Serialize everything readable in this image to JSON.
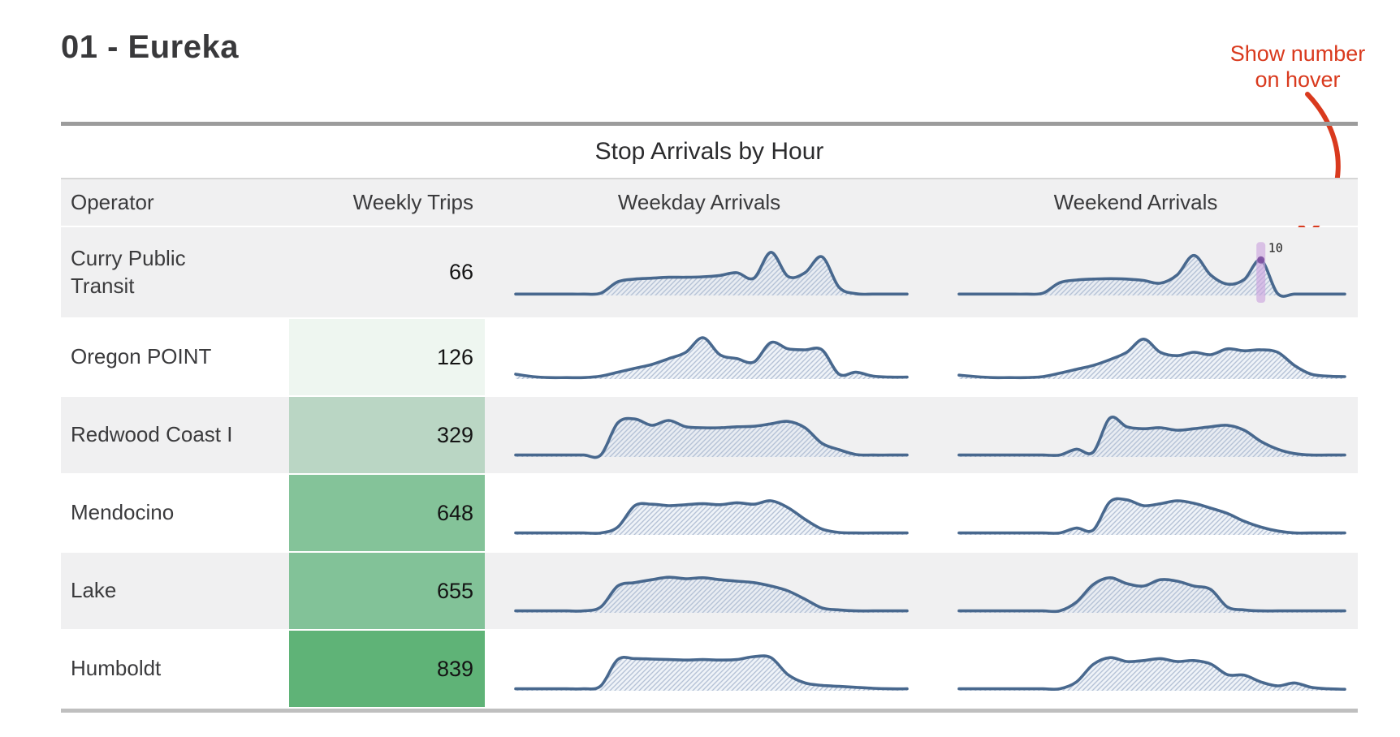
{
  "page_title": "01 - Eureka",
  "annotation": {
    "line1": "Show number",
    "line2": "on hover",
    "color": "#d93a1e"
  },
  "hover_tooltip": {
    "value": "10",
    "row": "Curry Public Transit",
    "column": "Weekend Arrivals",
    "hour_index": 18,
    "bar_color": "#c9a0dd",
    "dot_color": "#7a4f9e"
  },
  "colors": {
    "line": "#48688e",
    "hatch": "#b5c2d6",
    "row_stripe": "#f0f0f1"
  },
  "chart_data": {
    "type": "table",
    "title": "Stop Arrivals by Hour",
    "columns": [
      "Operator",
      "Weekly Trips",
      "Weekday Arrivals",
      "Weekend Arrivals"
    ],
    "sparkline_type": "area",
    "x_unit": "hour of day (0-23)",
    "y_unit": "relative arrivals (0-1, no axis shown)",
    "rows": [
      {
        "operator": "Curry Public Transit",
        "weekly_trips": 66,
        "trips_color": "#f0f0f1",
        "weekday_arrivals": [
          0.03,
          0.03,
          0.03,
          0.03,
          0.03,
          0.05,
          0.3,
          0.36,
          0.38,
          0.4,
          0.4,
          0.41,
          0.44,
          0.5,
          0.38,
          0.95,
          0.42,
          0.5,
          0.85,
          0.18,
          0.04,
          0.03,
          0.03,
          0.03
        ],
        "weekend_arrivals": [
          0.03,
          0.03,
          0.03,
          0.03,
          0.03,
          0.05,
          0.28,
          0.34,
          0.36,
          0.37,
          0.36,
          0.33,
          0.27,
          0.45,
          0.88,
          0.45,
          0.25,
          0.35,
          0.78,
          0.04,
          0.03,
          0.03,
          0.03,
          0.03
        ]
      },
      {
        "operator": "Oregon POINT",
        "weekly_trips": 126,
        "trips_color": "#eef6f0",
        "weekday_arrivals": [
          0.1,
          0.05,
          0.03,
          0.03,
          0.03,
          0.06,
          0.14,
          0.22,
          0.3,
          0.42,
          0.55,
          0.85,
          0.5,
          0.42,
          0.35,
          0.75,
          0.62,
          0.6,
          0.6,
          0.1,
          0.14,
          0.06,
          0.04,
          0.04
        ],
        "weekend_arrivals": [
          0.08,
          0.05,
          0.03,
          0.03,
          0.03,
          0.05,
          0.12,
          0.2,
          0.28,
          0.4,
          0.55,
          0.82,
          0.55,
          0.48,
          0.55,
          0.5,
          0.62,
          0.58,
          0.6,
          0.55,
          0.28,
          0.1,
          0.06,
          0.05
        ]
      },
      {
        "operator": "Redwood Coast I",
        "weekly_trips": 329,
        "trips_color": "#bad6c4",
        "weekday_arrivals": [
          0.04,
          0.04,
          0.04,
          0.04,
          0.04,
          0.04,
          0.7,
          0.78,
          0.65,
          0.75,
          0.62,
          0.6,
          0.6,
          0.62,
          0.63,
          0.68,
          0.73,
          0.6,
          0.28,
          0.15,
          0.05,
          0.04,
          0.04,
          0.04
        ],
        "weekend_arrivals": [
          0.04,
          0.04,
          0.04,
          0.04,
          0.04,
          0.04,
          0.04,
          0.16,
          0.1,
          0.8,
          0.62,
          0.58,
          0.6,
          0.55,
          0.58,
          0.62,
          0.65,
          0.55,
          0.32,
          0.16,
          0.07,
          0.04,
          0.04,
          0.04
        ]
      },
      {
        "operator": "Mendocino",
        "weekly_trips": 648,
        "trips_color": "#84c399",
        "weekday_arrivals": [
          0.04,
          0.04,
          0.04,
          0.04,
          0.04,
          0.04,
          0.16,
          0.6,
          0.63,
          0.6,
          0.62,
          0.64,
          0.62,
          0.66,
          0.63,
          0.7,
          0.56,
          0.32,
          0.12,
          0.05,
          0.04,
          0.04,
          0.04,
          0.04
        ],
        "weekend_arrivals": [
          0.04,
          0.04,
          0.04,
          0.04,
          0.04,
          0.04,
          0.04,
          0.14,
          0.1,
          0.68,
          0.72,
          0.6,
          0.64,
          0.7,
          0.65,
          0.55,
          0.44,
          0.28,
          0.16,
          0.08,
          0.04,
          0.04,
          0.04,
          0.04
        ]
      },
      {
        "operator": "Lake",
        "weekly_trips": 655,
        "trips_color": "#82c298",
        "weekday_arrivals": [
          0.04,
          0.04,
          0.04,
          0.04,
          0.04,
          0.12,
          0.55,
          0.62,
          0.68,
          0.73,
          0.7,
          0.72,
          0.68,
          0.65,
          0.62,
          0.55,
          0.45,
          0.28,
          0.1,
          0.06,
          0.04,
          0.04,
          0.04,
          0.04
        ],
        "weekend_arrivals": [
          0.04,
          0.04,
          0.04,
          0.04,
          0.04,
          0.04,
          0.04,
          0.22,
          0.58,
          0.72,
          0.6,
          0.55,
          0.68,
          0.65,
          0.55,
          0.48,
          0.12,
          0.06,
          0.04,
          0.04,
          0.04,
          0.04,
          0.04,
          0.04
        ]
      },
      {
        "operator": "Humboldt",
        "weekly_trips": 839,
        "trips_color": "#5fb377",
        "weekday_arrivals": [
          0.04,
          0.04,
          0.04,
          0.04,
          0.04,
          0.1,
          0.64,
          0.66,
          0.65,
          0.64,
          0.63,
          0.64,
          0.63,
          0.64,
          0.7,
          0.68,
          0.33,
          0.16,
          0.11,
          0.09,
          0.07,
          0.05,
          0.04,
          0.04
        ],
        "weekend_arrivals": [
          0.04,
          0.04,
          0.04,
          0.04,
          0.04,
          0.04,
          0.04,
          0.18,
          0.54,
          0.68,
          0.6,
          0.62,
          0.66,
          0.6,
          0.62,
          0.55,
          0.33,
          0.32,
          0.18,
          0.1,
          0.16,
          0.07,
          0.04,
          0.03
        ]
      }
    ]
  }
}
